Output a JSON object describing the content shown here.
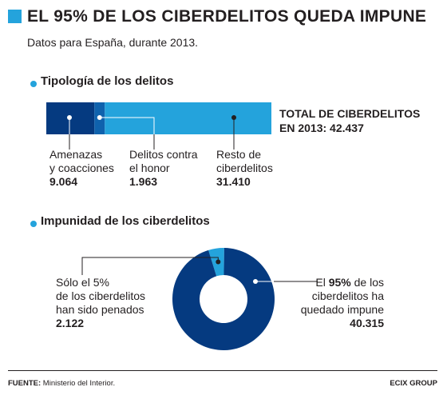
{
  "header": {
    "title": "EL 95% DE LOS CIBERDELITOS QUEDA IMPUNE",
    "subtitle": "Datos para España, durante 2013."
  },
  "colors": {
    "accent": "#24a3dc",
    "dark_blue": "#053a80",
    "mid_blue": "#0f62ad",
    "text": "#231f20"
  },
  "chart_data": [
    {
      "type": "bar",
      "title": "Tipología de los delitos",
      "orientation": "horizontal-stacked",
      "categories": [
        "Amenazas y coacciones",
        "Delitos contra el honor",
        "Resto de ciberdelitos"
      ],
      "values": [
        9064,
        1963,
        31410
      ],
      "value_labels": [
        "9.064",
        "1.963",
        "31.410"
      ],
      "total_label_line1": "TOTAL DE CIBERDELITOS",
      "total_label_line2": "EN 2013: 42.437",
      "total": 42437,
      "colors": [
        "#053a80",
        "#0f62ad",
        "#24a3dc"
      ]
    },
    {
      "type": "pie",
      "title": "Impunidad de los ciberdelitos",
      "donut": true,
      "categories": [
        "Sólo el 5% de los ciberdelitos han sido penados",
        "El 95% de los ciberdelitos ha quedado impune"
      ],
      "values": [
        2122,
        40315
      ],
      "percents": [
        5,
        95
      ],
      "value_labels": [
        "2.122",
        "40.315"
      ],
      "colors": [
        "#24a3dc",
        "#053a80"
      ]
    }
  ],
  "labels": {
    "amenazas_l1": "Amenazas",
    "amenazas_l2": "y coacciones",
    "honor_l1": "Delitos contra",
    "honor_l2": "el honor",
    "resto_l1": "Resto de",
    "resto_l2": "ciberdelitos",
    "penados_l1": "Sólo el 5%",
    "penados_l2": "de los ciberdelitos",
    "penados_l3": "han sido penados",
    "impune_pre": "El ",
    "impune_pct": "95%",
    "impune_post": " de los",
    "impune_l2": "ciberdelitos ha",
    "impune_l3": "quedado impune"
  },
  "footer": {
    "source_label": "FUENTE:",
    "source_text": " Ministerio del Interior.",
    "brand": "ECIX GROUP"
  }
}
